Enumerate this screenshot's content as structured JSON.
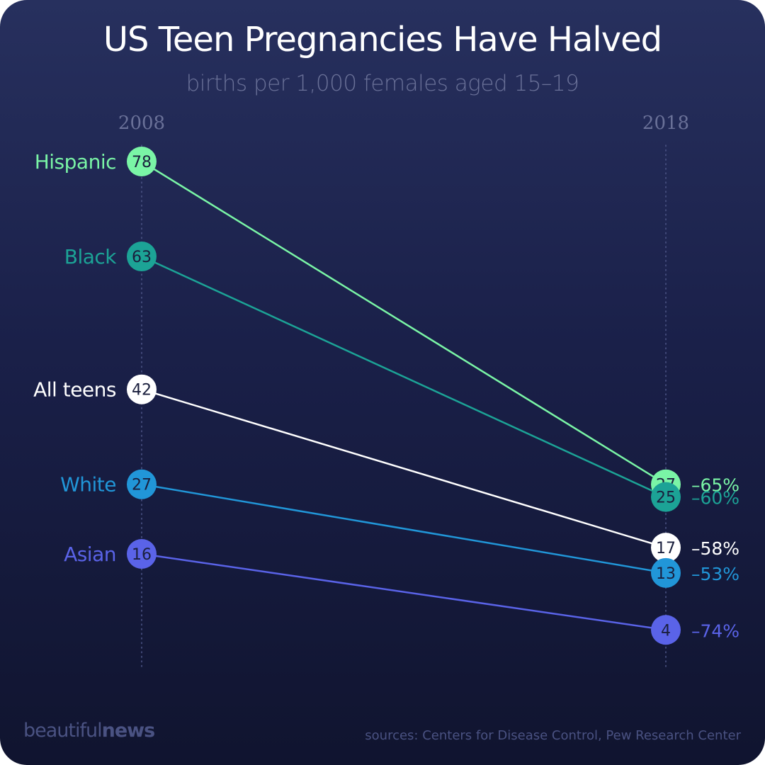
{
  "chart_data": {
    "type": "slope",
    "title": "US Teen Pregnancies Have Halved",
    "subtitle": "births per 1,000 females aged 15–19",
    "x": [
      "2008",
      "2018"
    ],
    "series": [
      {
        "name": "Hispanic",
        "values": [
          78,
          27
        ],
        "change": "–65%",
        "color": "#7af5a6"
      },
      {
        "name": "Black",
        "values": [
          63,
          25
        ],
        "change": "–60%",
        "color": "#1ca396"
      },
      {
        "name": "All teens",
        "values": [
          42,
          17
        ],
        "change": "–58%",
        "color": "#ffffff"
      },
      {
        "name": "White",
        "values": [
          27,
          13
        ],
        "change": "–53%",
        "color": "#2196d8"
      },
      {
        "name": "Asian",
        "values": [
          16,
          4
        ],
        "change": "–74%",
        "color": "#5a63e8"
      }
    ],
    "ylim": [
      0,
      78
    ],
    "grid": false
  },
  "footer": {
    "brand_light": "beautiful",
    "brand_bold": "news",
    "sources": "sources: Centers for Disease Control, Pew Research Center"
  },
  "colors": {
    "background_top": "#27305e",
    "background_bottom": "#10142f",
    "axis_text": "#6a7198"
  }
}
